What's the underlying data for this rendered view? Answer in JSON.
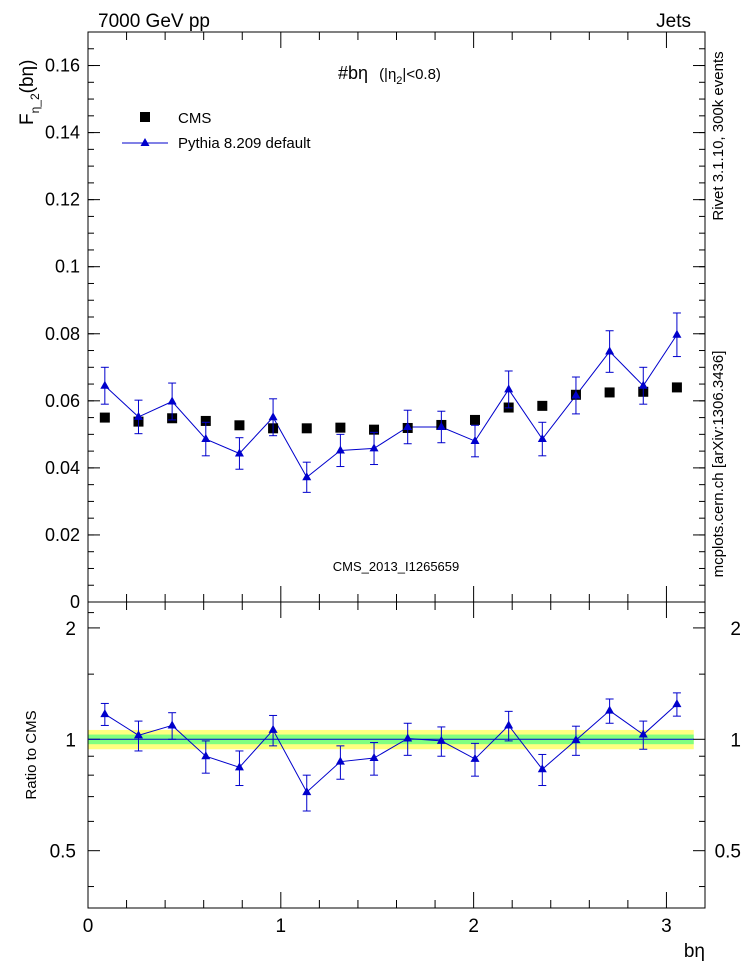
{
  "header": {
    "left": "7000 GeV pp",
    "right": "Jets"
  },
  "side_labels": {
    "rivet": "Rivet 3.1.10,  300k events",
    "mcplots": "mcplots.cern.ch [arXiv:1306.3436]"
  },
  "watermark": "CMS_2013_I1265659",
  "title": {
    "main": "#bη",
    "paren_open": "(|η",
    "sub": "2",
    "paren_close": "|<0.8)"
  },
  "chart_data": [
    {
      "panel": "main",
      "type": "scatter",
      "ylabel": {
        "base": "F",
        "sub": "η_2",
        "rest": "(bη)"
      },
      "xlim": [
        0,
        3.2
      ],
      "ylim": [
        0,
        0.17
      ],
      "yticks": [
        0,
        0.02,
        0.04,
        0.06,
        0.08,
        0.1,
        0.12,
        0.14,
        0.16
      ],
      "ytick_labels": [
        "0",
        "0.02",
        "0.04",
        "0.06",
        "0.08",
        "0.1",
        "0.12",
        "0.14",
        "0.16"
      ],
      "legend_position": "top-left",
      "x": [
        0.0873,
        0.2618,
        0.4363,
        0.6109,
        0.7854,
        0.9599,
        1.1345,
        1.309,
        1.4835,
        1.6581,
        1.8326,
        2.0071,
        2.1817,
        2.3562,
        2.5307,
        2.7053,
        2.8798,
        3.0543
      ],
      "series": [
        {
          "name": "CMS",
          "marker": "square",
          "color": "#000000",
          "values": [
            0.055,
            0.0538,
            0.0548,
            0.054,
            0.0527,
            0.0518,
            0.0518,
            0.052,
            0.0514,
            0.0519,
            0.0528,
            0.0543,
            0.058,
            0.0585,
            0.0618,
            0.0625,
            0.0627,
            0.064
          ]
        },
        {
          "name": "Pythia 8.209 default",
          "marker": "triangle",
          "color": "#0000cc",
          "values": [
            0.0645,
            0.0552,
            0.0598,
            0.0486,
            0.0443,
            0.0551,
            0.0372,
            0.0452,
            0.0458,
            0.0522,
            0.0522,
            0.048,
            0.0634,
            0.0486,
            0.0616,
            0.0747,
            0.0645,
            0.0797
          ],
          "errors": [
            0.0055,
            0.005,
            0.0055,
            0.005,
            0.0047,
            0.0055,
            0.0045,
            0.0048,
            0.0048,
            0.005,
            0.0047,
            0.0047,
            0.0055,
            0.005,
            0.0055,
            0.0062,
            0.0055,
            0.0065
          ]
        }
      ]
    },
    {
      "panel": "ratio",
      "type": "scatter",
      "ylabel": "Ratio to CMS",
      "xlabel": "bη",
      "xlim": [
        0,
        3.2
      ],
      "ylim": [
        0.35,
        2.35
      ],
      "yticks": [
        0.5,
        1,
        2
      ],
      "ytick_labels": [
        "0.5",
        "1",
        "2"
      ],
      "xticks": [
        0,
        1,
        2,
        3
      ],
      "xtick_labels": [
        "0",
        "1",
        "2",
        "3"
      ],
      "band_inner": 0.03,
      "band_outer": 0.06,
      "band_colors": {
        "inner": "#80ff80",
        "outer": "#ffff80"
      },
      "series": [
        {
          "name": "Pythia 8.209 default",
          "color": "#0000cc",
          "values": [
            1.17,
            1.025,
            1.09,
            0.9,
            0.84,
            1.06,
            0.72,
            0.87,
            0.89,
            1.005,
            0.99,
            0.885,
            1.09,
            0.83,
            0.995,
            1.195,
            1.03,
            1.245
          ],
          "errors": [
            0.08,
            0.095,
            0.09,
            0.09,
            0.09,
            0.1,
            0.08,
            0.09,
            0.09,
            0.1,
            0.09,
            0.09,
            0.1,
            0.08,
            0.09,
            0.09,
            0.09,
            0.09
          ]
        }
      ]
    }
  ]
}
